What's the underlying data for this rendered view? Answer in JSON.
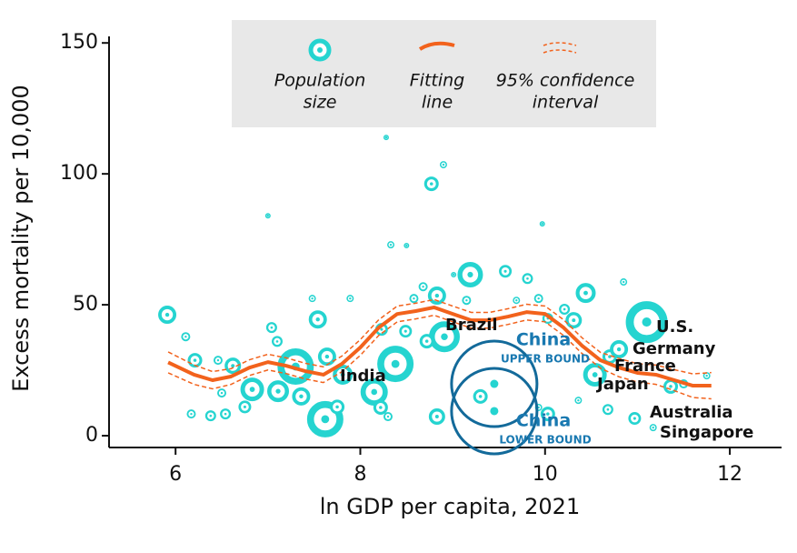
{
  "chart_data": {
    "type": "scatter",
    "x_label": "ln GDP per capita, 2021",
    "y_label": "Excess mortality per 10,000",
    "xlim": [
      5.28,
      12.56
    ],
    "ylim": [
      -4.5,
      152.5
    ],
    "xticks": [
      6,
      8,
      10,
      12
    ],
    "yticks": [
      0,
      50,
      100,
      150
    ],
    "color": "#25d4d0",
    "fit_color": "#f2621c",
    "china_color": "#136a9a",
    "x": [
      5.91,
      6.11,
      6.21,
      6.17,
      6.38,
      6.54,
      6.62,
      6.46,
      6.5,
      6.83,
      6.75,
      7.04,
      7.1,
      7.0,
      7.11,
      7.3,
      7.36,
      7.48,
      7.54,
      7.64,
      7.62,
      7.75,
      7.89,
      7.81,
      8.15,
      8.38,
      8.23,
      8.33,
      8.5,
      8.28,
      8.22,
      8.3,
      8.49,
      8.58,
      8.68,
      8.77,
      8.9,
      8.83,
      8.91,
      8.72,
      8.83,
      9.01,
      9.19,
      9.3,
      9.15,
      9.57,
      9.81,
      9.69,
      9.93,
      10.03,
      10.31,
      10.21,
      10.03,
      9.97,
      10.44,
      10.54,
      10.7,
      10.8,
      10.68,
      10.97,
      11.1,
      10.85,
      11.36,
      11.5,
      11.75,
      11.17,
      10.36,
      9.93
    ],
    "y": [
      46.2,
      37.8,
      28.8,
      8.3,
      7.6,
      8.3,
      26.7,
      28.8,
      16.3,
      17.7,
      11,
      41.3,
      36,
      84,
      17,
      26.4,
      15,
      52.4,
      44.4,
      30.2,
      6.3,
      11,
      52.4,
      23.3,
      16.7,
      27.4,
      40.6,
      72.9,
      72.6,
      113.9,
      10.8,
      7.3,
      39.9,
      52.4,
      56.9,
      96.2,
      103.5,
      53.5,
      37.8,
      36.1,
      7.3,
      61.5,
      61.5,
      15,
      51.7,
      62.8,
      60,
      51.7,
      52.4,
      44.8,
      44.1,
      48.3,
      8.3,
      80.9,
      54.5,
      23.3,
      30.2,
      33,
      10,
      6.6,
      43.4,
      58.7,
      18.8,
      19.8,
      22.9,
      3.1,
      13.5,
      10.8
    ],
    "sizes": [
      10,
      5,
      8,
      5,
      6,
      6,
      9,
      5,
      5,
      13,
      7,
      6,
      6,
      3,
      12,
      20,
      10,
      4,
      10,
      10,
      20,
      8,
      4,
      11,
      15,
      20,
      7,
      4,
      3,
      3,
      8,
      5,
      7,
      5,
      5,
      8,
      4,
      10,
      17,
      8,
      9,
      3,
      14,
      8,
      5,
      7,
      6,
      4,
      5,
      6,
      9,
      6,
      8,
      3,
      11,
      13,
      8,
      10,
      6,
      7,
      23,
      4,
      8,
      5,
      4,
      4,
      4,
      4
    ],
    "fit_x": [
      5.92,
      6.2,
      6.4,
      6.6,
      6.8,
      7.0,
      7.2,
      7.4,
      7.6,
      7.8,
      8.0,
      8.2,
      8.4,
      8.6,
      8.8,
      9.0,
      9.2,
      9.4,
      9.6,
      9.8,
      10.0,
      10.2,
      10.4,
      10.6,
      10.8,
      11.0,
      11.2,
      11.4,
      11.6,
      11.8
    ],
    "fit": [
      28,
      23.3,
      21.2,
      22.6,
      26,
      28.1,
      26.7,
      24.7,
      23.3,
      27.4,
      33.7,
      41.3,
      46.5,
      47.6,
      49,
      46.5,
      44.1,
      44.1,
      45.5,
      47.2,
      46.5,
      41.3,
      34.4,
      28.8,
      26,
      24,
      23.3,
      21.2,
      19.1,
      19.1
    ],
    "ci_upper": [
      32,
      27,
      24.5,
      25.6,
      29,
      31.1,
      29.7,
      27.7,
      26.3,
      30.4,
      36.7,
      44.3,
      49.5,
      50.6,
      52,
      49.5,
      47.1,
      47.1,
      48.5,
      50.2,
      49.5,
      44.3,
      37.4,
      31.8,
      29.5,
      27.5,
      27,
      25.2,
      23.6,
      24.1
    ],
    "ci_lower": [
      24,
      19.6,
      17.9,
      19.6,
      23,
      25.1,
      23.7,
      21.7,
      20.3,
      24.4,
      30.7,
      38.3,
      43.5,
      44.6,
      46,
      43.5,
      41.1,
      41.1,
      42.5,
      44.2,
      43.5,
      38.3,
      31.4,
      25.8,
      22.5,
      20.5,
      19.6,
      17.2,
      14.6,
      14.1
    ],
    "china": {
      "x": 9.45,
      "upper": 19.8,
      "lower": 9.4,
      "label": "China",
      "upper_label": "UPPER BOUND",
      "lower_label": "LOWER BOUND"
    },
    "annotations": [
      "Brazil",
      "India",
      "U.S.",
      "Germany",
      "France",
      "Japan",
      "Australia",
      "Singapore"
    ],
    "legend": [
      [
        "Population",
        "size"
      ],
      [
        "Fitting",
        "line"
      ],
      [
        "95% confidence",
        "interval"
      ]
    ]
  }
}
